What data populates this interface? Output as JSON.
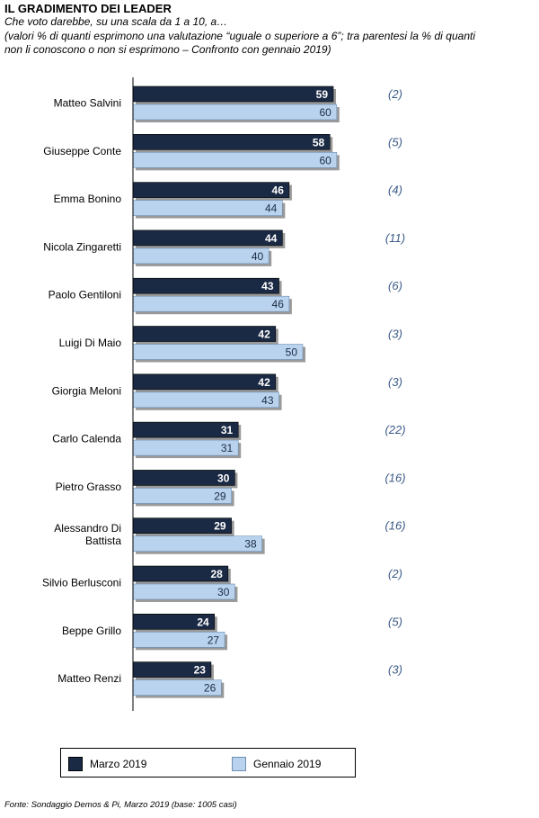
{
  "header": {
    "title": "IL GRADIMENTO DEI LEADER",
    "subtitle": "Che voto darebbe, su una scala da 1 a 10, a…",
    "note": "(valori % di quanti esprimono una valutazione “uguale o superiore a 6”; tra parentesi la % di quanti non li conoscono o non si esprimono – Confronto con gennaio 2019)"
  },
  "legend": {
    "series_1": "Marzo 2019",
    "series_2": "Gennaio 2019"
  },
  "source": "Fonte: Sondaggio Demos & Pi, Marzo 2019 (base: 1005 casi)",
  "chart_data": {
    "type": "bar",
    "orientation": "horizontal",
    "title": "IL GRADIMENTO DEI LEADER",
    "xlim": [
      0,
      100
    ],
    "grid": false,
    "legend_position": "bottom",
    "categories": [
      "Matteo Salvini",
      "Giuseppe Conte",
      "Emma Bonino",
      "Nicola Zingaretti",
      "Paolo Gentiloni",
      "Luigi Di Maio",
      "Giorgia Meloni",
      "Carlo Calenda",
      "Pietro Grasso",
      "Alessandro Di Battista",
      "Silvio Berlusconi",
      "Beppe Grillo",
      "Matteo Renzi"
    ],
    "series": [
      {
        "name": "Marzo 2019",
        "color": "#1b2a44",
        "values": [
          59,
          58,
          46,
          44,
          43,
          42,
          42,
          31,
          30,
          29,
          28,
          24,
          23
        ]
      },
      {
        "name": "Gennaio 2019",
        "color": "#b9d3ee",
        "values": [
          60,
          60,
          44,
          40,
          46,
          50,
          43,
          31,
          29,
          38,
          30,
          27,
          26
        ]
      }
    ],
    "annotations": [
      "(2)",
      "(5)",
      "(4)",
      "(11)",
      "(6)",
      "(3)",
      "(3)",
      "(22)",
      "(16)",
      "(16)",
      "(2)",
      "(5)",
      "(3)"
    ],
    "annotation_color": "#3a5a86"
  }
}
